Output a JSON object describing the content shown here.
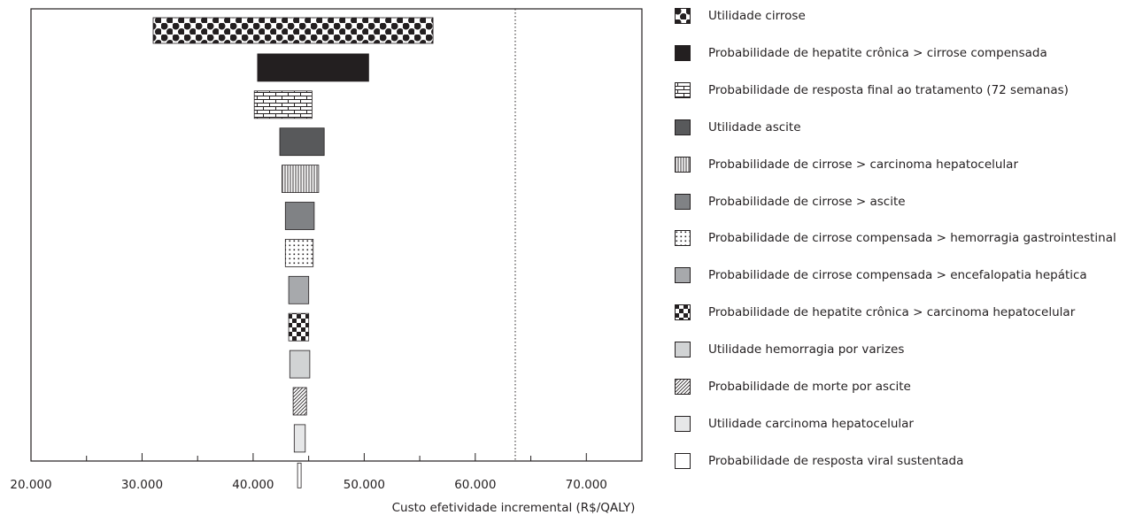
{
  "chart_data": {
    "type": "tornado",
    "xlabel": "Custo efetividade incremental (R$/QALY)",
    "xlim": [
      20000,
      75000
    ],
    "x_ticks": [
      20000,
      30000,
      40000,
      50000,
      60000,
      70000
    ],
    "x_tick_labels": [
      "20.000",
      "30.000",
      "40.000",
      "50.000",
      "60.000",
      "70.000"
    ],
    "minor_tick_step": 5000,
    "reference_line": 63600,
    "grid": false,
    "legend_position": "right",
    "bars": [
      {
        "name": "Utilidade cirrose",
        "low": 31000,
        "high": 56200,
        "pattern": "dots"
      },
      {
        "name": "Probabilidade de hepatite crônica > cirrose compensada",
        "low": 40400,
        "high": 50400,
        "pattern": "black"
      },
      {
        "name": "Probabilidade de resposta final ao tratamento (72 semanas)",
        "low": 40100,
        "high": 45300,
        "pattern": "brick"
      },
      {
        "name": "Utilidade ascite",
        "low": 42400,
        "high": 46400,
        "pattern": "darkgray"
      },
      {
        "name": "Probabilidade de cirrose > carcinoma hepatocelular",
        "low": 42600,
        "high": 45900,
        "pattern": "vlines"
      },
      {
        "name": "Probabilidade de cirrose > ascite",
        "low": 42900,
        "high": 45500,
        "pattern": "gray"
      },
      {
        "name": "Probabilidade de cirrose compensada > hemorragia gastrointestinal",
        "low": 42900,
        "high": 45400,
        "pattern": "dotgrid"
      },
      {
        "name": "Probabilidade de cirrose compensada > encefalopatia hepática",
        "low": 43200,
        "high": 45000,
        "pattern": "midgray"
      },
      {
        "name": "Probabilidade de hepatite crônica > carcinoma hepatocelular",
        "low": 43200,
        "high": 45000,
        "pattern": "checker"
      },
      {
        "name": "Utilidade hemorragia por varizes",
        "low": 43300,
        "high": 45100,
        "pattern": "lightgray"
      },
      {
        "name": "Probabilidade de morte por ascite",
        "low": 43600,
        "high": 44800,
        "pattern": "diagonal"
      },
      {
        "name": "Utilidade carcinoma hepatocelular",
        "low": 43700,
        "high": 44700,
        "pattern": "verylightgray"
      },
      {
        "name": "Probabilidade de resposta viral sustentada",
        "low": 44000,
        "high": 44300,
        "pattern": "white"
      }
    ]
  },
  "colors": {
    "ink": "#231f20",
    "darkgray": "#58595b",
    "gray": "#808285",
    "midgray": "#a7a9ac",
    "lightgray": "#d1d3d4",
    "verylightgray": "#e6e7e8",
    "white": "#ffffff"
  }
}
